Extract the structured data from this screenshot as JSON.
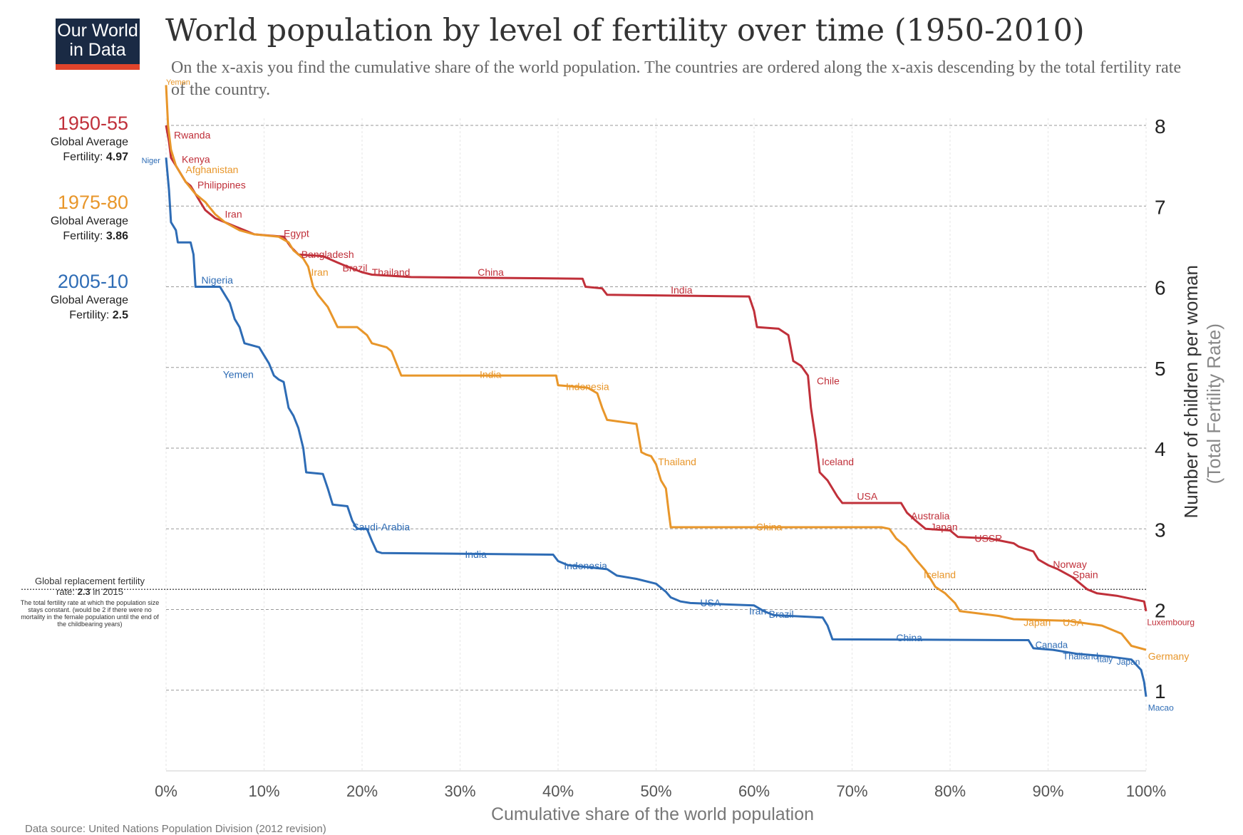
{
  "logo": {
    "line1": "Our World",
    "line2": "in Data"
  },
  "title": "World population by level of fertility over time (1950-2010)",
  "subtitle": "On the x-axis you find the cumulative share of the world population. The countries are ordered along the x-axis descending by the total fertility rate of the country.",
  "legend": [
    {
      "period": "1950-55",
      "line1": "Global Average",
      "fert_prefix": "Fertility: ",
      "value": "4.97",
      "color": "#c0303a"
    },
    {
      "period": "1975-80",
      "line1": "Global Average",
      "fert_prefix": "Fertility: ",
      "value": "3.86",
      "color": "#e8962a"
    },
    {
      "period": "2005-10",
      "line1": "Global Average",
      "fert_prefix": "Fertility: ",
      "value": "2.5",
      "color": "#2e6cb5"
    }
  ],
  "replacement_note": {
    "line1": "Global replacement fertility",
    "line2_prefix": "rate: ",
    "value": "2.3",
    "line2_suffix": " in 2015",
    "detail": "The total fertility rate at which the population size stays constant. (would be 2 if there were no mortality in the female population until the end of the childbearing years)"
  },
  "source": "Data source: United Nations Population Division (2012 revision)",
  "chart_data": {
    "type": "line",
    "title": "World population by level of fertility over time (1950-2010)",
    "xlabel": "Cumulative share of the world population",
    "ylabel": "Number of children per woman",
    "ylabel2": "(Total Fertility Rate)",
    "xlim": [
      0,
      100
    ],
    "ylim": [
      0,
      8
    ],
    "x_ticks": [
      0,
      10,
      20,
      30,
      40,
      50,
      60,
      70,
      80,
      90,
      100
    ],
    "x_tick_labels": [
      "0%",
      "10%",
      "20%",
      "30%",
      "40%",
      "50%",
      "60%",
      "70%",
      "80%",
      "90%",
      "100%"
    ],
    "y_ticks": [
      1,
      2,
      3,
      4,
      5,
      6,
      7,
      8
    ],
    "y_tick_labels": [
      "1",
      "2",
      "3",
      "4",
      "5",
      "6",
      "7",
      "8"
    ],
    "replacement_rate": 2.25,
    "series": [
      {
        "name": "1950-55",
        "color": "#c0303a",
        "points": [
          [
            0,
            8.0
          ],
          [
            0.3,
            7.8
          ],
          [
            0.5,
            7.6
          ],
          [
            1.0,
            7.5
          ],
          [
            1.5,
            7.4
          ],
          [
            2.0,
            7.3
          ],
          [
            2.5,
            7.25
          ],
          [
            3.0,
            7.15
          ],
          [
            3.5,
            7.05
          ],
          [
            4.0,
            6.95
          ],
          [
            5.0,
            6.85
          ],
          [
            6.0,
            6.8
          ],
          [
            7.0,
            6.75
          ],
          [
            8.0,
            6.7
          ],
          [
            9.0,
            6.65
          ],
          [
            12.0,
            6.62
          ],
          [
            12.7,
            6.5
          ],
          [
            13.5,
            6.4
          ],
          [
            16.0,
            6.38
          ],
          [
            17.5,
            6.3
          ],
          [
            18.5,
            6.25
          ],
          [
            20.0,
            6.18
          ],
          [
            21.0,
            6.15
          ],
          [
            25.0,
            6.12
          ],
          [
            42.5,
            6.1
          ],
          [
            42.8,
            6.0
          ],
          [
            44.5,
            5.98
          ],
          [
            45.0,
            5.9
          ],
          [
            59.5,
            5.88
          ],
          [
            60.0,
            5.7
          ],
          [
            60.3,
            5.5
          ],
          [
            62.5,
            5.48
          ],
          [
            63.5,
            5.4
          ],
          [
            64.0,
            5.08
          ],
          [
            64.8,
            5.02
          ],
          [
            65.5,
            4.9
          ],
          [
            65.8,
            4.5
          ],
          [
            66.3,
            4.1
          ],
          [
            66.7,
            3.7
          ],
          [
            67.5,
            3.6
          ],
          [
            68.0,
            3.5
          ],
          [
            68.5,
            3.4
          ],
          [
            69.0,
            3.32
          ],
          [
            75.0,
            3.32
          ],
          [
            75.6,
            3.2
          ],
          [
            76.5,
            3.1
          ],
          [
            77.5,
            3.0
          ],
          [
            80.0,
            2.98
          ],
          [
            80.8,
            2.9
          ],
          [
            84.0,
            2.88
          ],
          [
            86.5,
            2.82
          ],
          [
            87.0,
            2.78
          ],
          [
            88.5,
            2.72
          ],
          [
            89.0,
            2.62
          ],
          [
            90.0,
            2.55
          ],
          [
            91.0,
            2.5
          ],
          [
            92.5,
            2.4
          ],
          [
            94.0,
            2.25
          ],
          [
            95.0,
            2.2
          ],
          [
            97.0,
            2.17
          ],
          [
            99.8,
            2.1
          ],
          [
            100,
            1.98
          ]
        ]
      },
      {
        "name": "1975-80",
        "color": "#e8962a",
        "points": [
          [
            0,
            8.5
          ],
          [
            0.2,
            8.0
          ],
          [
            0.5,
            7.7
          ],
          [
            1.0,
            7.5
          ],
          [
            1.5,
            7.4
          ],
          [
            2.0,
            7.3
          ],
          [
            3.0,
            7.15
          ],
          [
            4.0,
            7.05
          ],
          [
            5.0,
            6.9
          ],
          [
            6.0,
            6.8
          ],
          [
            7.5,
            6.7
          ],
          [
            9.0,
            6.65
          ],
          [
            11.5,
            6.62
          ],
          [
            12.5,
            6.55
          ],
          [
            13.0,
            6.45
          ],
          [
            14.0,
            6.35
          ],
          [
            14.5,
            6.25
          ],
          [
            15.0,
            6.0
          ],
          [
            15.5,
            5.9
          ],
          [
            16.5,
            5.75
          ],
          [
            17.5,
            5.5
          ],
          [
            19.5,
            5.5
          ],
          [
            20.5,
            5.4
          ],
          [
            21.0,
            5.3
          ],
          [
            22.5,
            5.25
          ],
          [
            23.0,
            5.2
          ],
          [
            23.5,
            5.05
          ],
          [
            24.0,
            4.9
          ],
          [
            39.8,
            4.9
          ],
          [
            40.0,
            4.78
          ],
          [
            43.0,
            4.75
          ],
          [
            44.0,
            4.68
          ],
          [
            44.5,
            4.5
          ],
          [
            45.0,
            4.35
          ],
          [
            48.0,
            4.3
          ],
          [
            48.5,
            3.95
          ],
          [
            49.0,
            3.92
          ],
          [
            49.5,
            3.9
          ],
          [
            50.0,
            3.8
          ],
          [
            50.5,
            3.6
          ],
          [
            51.0,
            3.5
          ],
          [
            51.3,
            3.2
          ],
          [
            51.5,
            3.02
          ],
          [
            73.0,
            3.02
          ],
          [
            73.8,
            3.0
          ],
          [
            74.5,
            2.88
          ],
          [
            75.5,
            2.78
          ],
          [
            76.5,
            2.62
          ],
          [
            77.0,
            2.55
          ],
          [
            77.5,
            2.48
          ],
          [
            78.0,
            2.38
          ],
          [
            78.5,
            2.28
          ],
          [
            79.5,
            2.2
          ],
          [
            80.5,
            2.08
          ],
          [
            81.0,
            1.98
          ],
          [
            85.0,
            1.92
          ],
          [
            86.5,
            1.88
          ],
          [
            92.0,
            1.86
          ],
          [
            95.5,
            1.8
          ],
          [
            97.5,
            1.7
          ],
          [
            98.5,
            1.55
          ],
          [
            100,
            1.5
          ]
        ]
      },
      {
        "name": "2005-10",
        "color": "#2e6cb5",
        "points": [
          [
            0,
            7.6
          ],
          [
            0.3,
            7.2
          ],
          [
            0.5,
            6.8
          ],
          [
            1.0,
            6.7
          ],
          [
            1.2,
            6.55
          ],
          [
            2.5,
            6.55
          ],
          [
            2.8,
            6.4
          ],
          [
            3.0,
            6.0
          ],
          [
            5.5,
            6.0
          ],
          [
            6.0,
            5.9
          ],
          [
            6.5,
            5.8
          ],
          [
            7.0,
            5.6
          ],
          [
            7.5,
            5.5
          ],
          [
            8.0,
            5.3
          ],
          [
            9.5,
            5.25
          ],
          [
            10.0,
            5.15
          ],
          [
            10.5,
            5.05
          ],
          [
            11.0,
            4.9
          ],
          [
            11.5,
            4.85
          ],
          [
            12.0,
            4.82
          ],
          [
            12.5,
            4.5
          ],
          [
            13.0,
            4.4
          ],
          [
            13.5,
            4.25
          ],
          [
            14.0,
            4.0
          ],
          [
            14.3,
            3.7
          ],
          [
            16.0,
            3.68
          ],
          [
            16.5,
            3.5
          ],
          [
            17.0,
            3.3
          ],
          [
            18.5,
            3.28
          ],
          [
            19.0,
            3.1
          ],
          [
            19.5,
            3.0
          ],
          [
            20.5,
            3.0
          ],
          [
            21.0,
            2.85
          ],
          [
            21.5,
            2.72
          ],
          [
            22.0,
            2.7
          ],
          [
            39.5,
            2.68
          ],
          [
            40.0,
            2.6
          ],
          [
            41.0,
            2.55
          ],
          [
            45.0,
            2.5
          ],
          [
            46.0,
            2.42
          ],
          [
            48.0,
            2.38
          ],
          [
            50.0,
            2.32
          ],
          [
            51.0,
            2.22
          ],
          [
            51.5,
            2.15
          ],
          [
            52.5,
            2.1
          ],
          [
            53.5,
            2.08
          ],
          [
            60.0,
            2.05
          ],
          [
            61.0,
            1.98
          ],
          [
            62.0,
            1.93
          ],
          [
            67.0,
            1.9
          ],
          [
            67.5,
            1.8
          ],
          [
            68.0,
            1.63
          ],
          [
            88.0,
            1.62
          ],
          [
            88.5,
            1.52
          ],
          [
            90.5,
            1.5
          ],
          [
            93.0,
            1.45
          ],
          [
            96.0,
            1.42
          ],
          [
            98.5,
            1.38
          ],
          [
            99.5,
            1.25
          ],
          [
            99.8,
            1.1
          ],
          [
            100,
            0.92
          ]
        ]
      }
    ],
    "annotations": [
      {
        "series": "1975-80",
        "text": "Yemen",
        "x": 0.0,
        "y": 8.55,
        "size": 11
      },
      {
        "series": "1950-55",
        "text": "Rwanda",
        "x": 0.8,
        "y": 7.9,
        "size": 14
      },
      {
        "series": "2005-10",
        "text": "Niger",
        "x": -2.5,
        "y": 7.58,
        "size": 11
      },
      {
        "series": "1950-55",
        "text": "Kenya",
        "x": 1.6,
        "y": 7.6,
        "size": 14
      },
      {
        "series": "1975-80",
        "text": "Afghanistan",
        "x": 2.0,
        "y": 7.47,
        "size": 14
      },
      {
        "series": "1950-55",
        "text": "Philippines",
        "x": 3.2,
        "y": 7.28,
        "size": 14
      },
      {
        "series": "1950-55",
        "text": "Iran",
        "x": 6.0,
        "y": 6.92,
        "size": 14
      },
      {
        "series": "1950-55",
        "text": "Egypt",
        "x": 12.0,
        "y": 6.68,
        "size": 14
      },
      {
        "series": "1950-55",
        "text": "Bangladesh",
        "x": 13.8,
        "y": 6.42,
        "size": 14
      },
      {
        "series": "1975-80",
        "text": "Iran",
        "x": 14.8,
        "y": 6.2,
        "size": 14
      },
      {
        "series": "1950-55",
        "text": "Brazil",
        "x": 18.0,
        "y": 6.25,
        "size": 14
      },
      {
        "series": "1950-55",
        "text": "Thailand",
        "x": 21.0,
        "y": 6.2,
        "size": 14
      },
      {
        "series": "1950-55",
        "text": "China",
        "x": 31.8,
        "y": 6.2,
        "size": 14
      },
      {
        "series": "2005-10",
        "text": "Nigeria",
        "x": 3.6,
        "y": 6.1,
        "size": 14
      },
      {
        "series": "1950-55",
        "text": "India",
        "x": 51.5,
        "y": 5.98,
        "size": 14
      },
      {
        "series": "2005-10",
        "text": "Yemen",
        "x": 5.8,
        "y": 4.93,
        "size": 14
      },
      {
        "series": "1975-80",
        "text": "India",
        "x": 32.0,
        "y": 4.93,
        "size": 14
      },
      {
        "series": "1975-80",
        "text": "Indonesia",
        "x": 40.8,
        "y": 4.78,
        "size": 14
      },
      {
        "series": "1950-55",
        "text": "Chile",
        "x": 66.4,
        "y": 4.85,
        "size": 14
      },
      {
        "series": "1975-80",
        "text": "Thailand",
        "x": 50.2,
        "y": 3.85,
        "size": 14
      },
      {
        "series": "1950-55",
        "text": "Iceland",
        "x": 66.9,
        "y": 3.85,
        "size": 14
      },
      {
        "series": "1950-55",
        "text": "USA",
        "x": 70.5,
        "y": 3.42,
        "size": 14
      },
      {
        "series": "1950-55",
        "text": "Australia",
        "x": 76.0,
        "y": 3.18,
        "size": 14
      },
      {
        "series": "1950-55",
        "text": "Japan",
        "x": 78.0,
        "y": 3.04,
        "size": 14
      },
      {
        "series": "1950-55",
        "text": "USSR",
        "x": 82.5,
        "y": 2.9,
        "size": 14
      },
      {
        "series": "2005-10",
        "text": "Saudi-Arabia",
        "x": 19.0,
        "y": 3.04,
        "size": 14
      },
      {
        "series": "1975-80",
        "text": "China",
        "x": 60.2,
        "y": 3.04,
        "size": 14
      },
      {
        "series": "2005-10",
        "text": "India",
        "x": 30.5,
        "y": 2.7,
        "size": 14
      },
      {
        "series": "2005-10",
        "text": "Indonesia",
        "x": 40.6,
        "y": 2.56,
        "size": 14
      },
      {
        "series": "1975-80",
        "text": "Iceland",
        "x": 77.3,
        "y": 2.45,
        "size": 14
      },
      {
        "series": "1950-55",
        "text": "Norway",
        "x": 90.5,
        "y": 2.58,
        "size": 14
      },
      {
        "series": "1950-55",
        "text": "Spain",
        "x": 92.5,
        "y": 2.45,
        "size": 14
      },
      {
        "series": "2005-10",
        "text": "USA",
        "x": 54.5,
        "y": 2.1,
        "size": 14
      },
      {
        "series": "2005-10",
        "text": "Iran",
        "x": 59.5,
        "y": 2.0,
        "size": 14
      },
      {
        "series": "2005-10",
        "text": "Brazil",
        "x": 61.5,
        "y": 1.96,
        "size": 14
      },
      {
        "series": "1975-80",
        "text": "Japan",
        "x": 87.5,
        "y": 1.86,
        "size": 14
      },
      {
        "series": "1975-80",
        "text": "USA",
        "x": 91.5,
        "y": 1.86,
        "size": 14
      },
      {
        "series": "1950-55",
        "text": "Luxembourg",
        "x": 100.1,
        "y": 1.86,
        "size": 12
      },
      {
        "series": "2005-10",
        "text": "China",
        "x": 74.5,
        "y": 1.67,
        "size": 14
      },
      {
        "series": "2005-10",
        "text": "Canada",
        "x": 88.7,
        "y": 1.58,
        "size": 13
      },
      {
        "series": "2005-10",
        "text": "Thailand",
        "x": 91.5,
        "y": 1.44,
        "size": 13
      },
      {
        "series": "2005-10",
        "text": "Italy",
        "x": 95.0,
        "y": 1.4,
        "size": 12
      },
      {
        "series": "2005-10",
        "text": "Japan",
        "x": 97.0,
        "y": 1.37,
        "size": 12
      },
      {
        "series": "1975-80",
        "text": "Germany",
        "x": 100.2,
        "y": 1.44,
        "size": 14
      },
      {
        "series": "2005-10",
        "text": "Macao",
        "x": 100.2,
        "y": 0.8,
        "size": 12
      }
    ]
  }
}
